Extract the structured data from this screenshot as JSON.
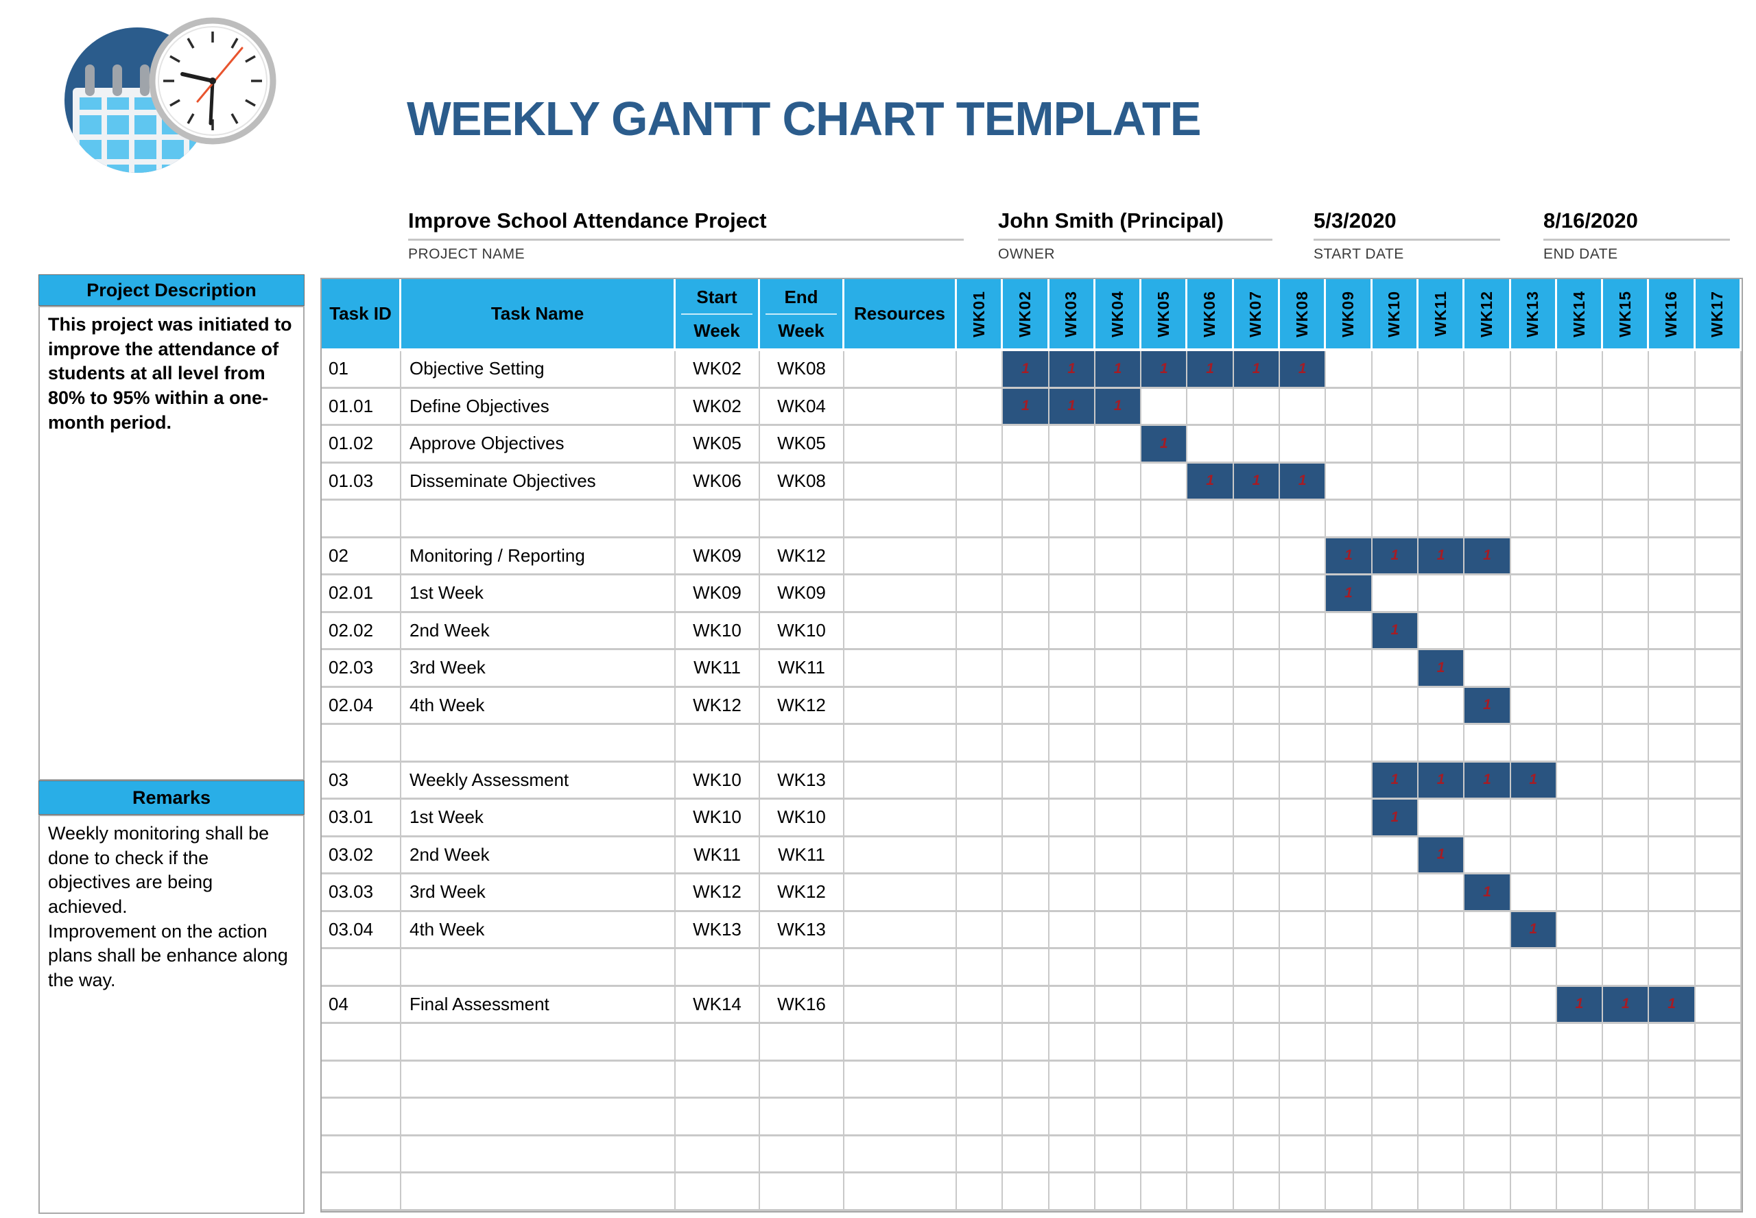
{
  "page": {
    "title": "WEEKLY GANTT CHART TEMPLATE"
  },
  "logo": {
    "name": "calendar-clock-logo",
    "circle_color": "#2B5C8C",
    "calendar_square_color": "#5FC6F0",
    "second_hand_color": "#E8542E"
  },
  "project_info": {
    "name_value": "Improve School Attendance Project",
    "name_label": "PROJECT NAME",
    "owner_value": "John Smith (Principal)",
    "owner_label": "OWNER",
    "start_value": "5/3/2020",
    "start_label": "START DATE",
    "end_value": "8/16/2020",
    "end_label": "END DATE"
  },
  "sidebar": {
    "description_header": "Project Description",
    "description_body": "This project was initiated to improve the attendance of students at all level from 80% to 95% within a one-month period.",
    "remarks_header": "Remarks",
    "remarks_body": "Weekly monitoring shall be done to check if the objectives are being achieved.\nImprovement on the action plans shall be enhance along the way."
  },
  "table": {
    "headers": {
      "task_id": "Task ID",
      "task_name": "Task Name",
      "start_line1": "Start",
      "start_line2": "Week",
      "end_line1": "End",
      "end_line2": "Week",
      "resources": "Resources"
    },
    "weeks": [
      "WK01",
      "WK02",
      "WK03",
      "WK04",
      "WK05",
      "WK06",
      "WK07",
      "WK08",
      "WK09",
      "WK10",
      "WK11",
      "WK12",
      "WK13",
      "WK14",
      "WK15",
      "WK16",
      "WK17"
    ],
    "bar_marker": "1",
    "rows": [
      {
        "id": "01",
        "name": "Objective Setting",
        "start": "WK02",
        "end": "WK08",
        "bar": [
          2,
          8
        ]
      },
      {
        "id": "01.01",
        "name": "Define Objectives",
        "start": "WK02",
        "end": "WK04",
        "bar": [
          2,
          4
        ]
      },
      {
        "id": "01.02",
        "name": "Approve Objectives",
        "start": "WK05",
        "end": "WK05",
        "bar": [
          5,
          5
        ]
      },
      {
        "id": "01.03",
        "name": "Disseminate Objectives",
        "start": "WK06",
        "end": "WK08",
        "bar": [
          6,
          8
        ]
      },
      {},
      {
        "id": "02",
        "name": "Monitoring / Reporting",
        "start": "WK09",
        "end": "WK12",
        "bar": [
          9,
          12
        ]
      },
      {
        "id": "02.01",
        "name": "1st Week",
        "start": "WK09",
        "end": "WK09",
        "bar": [
          9,
          9
        ]
      },
      {
        "id": "02.02",
        "name": "2nd Week",
        "start": "WK10",
        "end": "WK10",
        "bar": [
          10,
          10
        ]
      },
      {
        "id": "02.03",
        "name": "3rd Week",
        "start": "WK11",
        "end": "WK11",
        "bar": [
          11,
          11
        ]
      },
      {
        "id": "02.04",
        "name": "4th Week",
        "start": "WK12",
        "end": "WK12",
        "bar": [
          12,
          12
        ]
      },
      {},
      {
        "id": "03",
        "name": "Weekly Assessment",
        "start": "WK10",
        "end": "WK13",
        "bar": [
          10,
          13
        ]
      },
      {
        "id": "03.01",
        "name": "1st Week",
        "start": "WK10",
        "end": "WK10",
        "bar": [
          10,
          10
        ]
      },
      {
        "id": "03.02",
        "name": "2nd Week",
        "start": "WK11",
        "end": "WK11",
        "bar": [
          11,
          11
        ]
      },
      {
        "id": "03.03",
        "name": "3rd Week",
        "start": "WK12",
        "end": "WK12",
        "bar": [
          12,
          12
        ]
      },
      {
        "id": "03.04",
        "name": "4th Week",
        "start": "WK13",
        "end": "WK13",
        "bar": [
          13,
          13
        ]
      },
      {},
      {
        "id": "04",
        "name": "Final Assessment",
        "start": "WK14",
        "end": "WK16",
        "bar": [
          14,
          16
        ]
      },
      {},
      {},
      {},
      {},
      {}
    ]
  },
  "colors": {
    "accent_cyan": "#29AEE7",
    "title_blue": "#2B5C8C",
    "bar_navy": "#2A5480",
    "bar_marker_red": "#A61C24",
    "grid_gray": "#C9C9C9"
  },
  "chart_data": {
    "type": "table",
    "title": "WEEKLY GANTT CHART TEMPLATE",
    "subtitle": "Improve School Attendance Project",
    "x_categories": [
      "WK01",
      "WK02",
      "WK03",
      "WK04",
      "WK05",
      "WK06",
      "WK07",
      "WK08",
      "WK09",
      "WK10",
      "WK11",
      "WK12",
      "WK13",
      "WK14",
      "WK15",
      "WK16",
      "WK17"
    ],
    "legend_position": "none",
    "grid": true,
    "tasks": [
      {
        "id": "01",
        "name": "Objective Setting",
        "start_week": "WK02",
        "end_week": "WK08",
        "weeks_marked": [
          "WK02",
          "WK03",
          "WK04",
          "WK05",
          "WK06",
          "WK07",
          "WK08"
        ]
      },
      {
        "id": "01.01",
        "name": "Define Objectives",
        "start_week": "WK02",
        "end_week": "WK04",
        "weeks_marked": [
          "WK02",
          "WK03",
          "WK04"
        ]
      },
      {
        "id": "01.02",
        "name": "Approve Objectives",
        "start_week": "WK05",
        "end_week": "WK05",
        "weeks_marked": [
          "WK05"
        ]
      },
      {
        "id": "01.03",
        "name": "Disseminate Objectives",
        "start_week": "WK06",
        "end_week": "WK08",
        "weeks_marked": [
          "WK06",
          "WK07",
          "WK08"
        ]
      },
      {
        "id": "02",
        "name": "Monitoring / Reporting",
        "start_week": "WK09",
        "end_week": "WK12",
        "weeks_marked": [
          "WK09",
          "WK10",
          "WK11",
          "WK12"
        ]
      },
      {
        "id": "02.01",
        "name": "1st Week",
        "start_week": "WK09",
        "end_week": "WK09",
        "weeks_marked": [
          "WK09"
        ]
      },
      {
        "id": "02.02",
        "name": "2nd Week",
        "start_week": "WK10",
        "end_week": "WK10",
        "weeks_marked": [
          "WK10"
        ]
      },
      {
        "id": "02.03",
        "name": "3rd Week",
        "start_week": "WK11",
        "end_week": "WK11",
        "weeks_marked": [
          "WK11"
        ]
      },
      {
        "id": "02.04",
        "name": "4th Week",
        "start_week": "WK12",
        "end_week": "WK12",
        "weeks_marked": [
          "WK12"
        ]
      },
      {
        "id": "03",
        "name": "Weekly Assessment",
        "start_week": "WK10",
        "end_week": "WK13",
        "weeks_marked": [
          "WK10",
          "WK11",
          "WK12",
          "WK13"
        ]
      },
      {
        "id": "03.01",
        "name": "1st Week",
        "start_week": "WK10",
        "end_week": "WK10",
        "weeks_marked": [
          "WK10"
        ]
      },
      {
        "id": "03.02",
        "name": "2nd Week",
        "start_week": "WK11",
        "end_week": "WK11",
        "weeks_marked": [
          "WK11"
        ]
      },
      {
        "id": "03.03",
        "name": "3rd Week",
        "start_week": "WK12",
        "end_week": "WK12",
        "weeks_marked": [
          "WK12"
        ]
      },
      {
        "id": "03.04",
        "name": "4th Week",
        "start_week": "WK13",
        "end_week": "WK13",
        "weeks_marked": [
          "WK13"
        ]
      },
      {
        "id": "04",
        "name": "Final Assessment",
        "start_week": "WK14",
        "end_week": "WK16",
        "weeks_marked": [
          "WK14",
          "WK15",
          "WK16"
        ]
      }
    ],
    "cell_value_in_marked_weeks": "1"
  }
}
